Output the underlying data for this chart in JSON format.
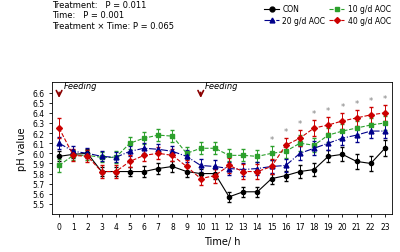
{
  "time": [
    0,
    1,
    2,
    3,
    4,
    5,
    6,
    7,
    8,
    9,
    10,
    11,
    12,
    13,
    14,
    15,
    16,
    17,
    18,
    19,
    20,
    21,
    22,
    23
  ],
  "CON": [
    5.97,
    5.99,
    6.0,
    5.82,
    5.82,
    5.82,
    5.82,
    5.85,
    5.87,
    5.82,
    5.8,
    5.8,
    5.57,
    5.62,
    5.62,
    5.75,
    5.78,
    5.82,
    5.84,
    5.97,
    5.99,
    5.92,
    5.9,
    6.05
  ],
  "CON_err": [
    0.05,
    0.04,
    0.04,
    0.04,
    0.04,
    0.04,
    0.05,
    0.05,
    0.05,
    0.05,
    0.05,
    0.05,
    0.05,
    0.05,
    0.05,
    0.05,
    0.05,
    0.06,
    0.06,
    0.06,
    0.07,
    0.07,
    0.07,
    0.08
  ],
  "G10": [
    5.88,
    5.98,
    5.98,
    5.96,
    5.96,
    6.1,
    6.15,
    6.18,
    6.17,
    6.0,
    6.05,
    6.05,
    5.98,
    5.98,
    5.97,
    6.0,
    6.02,
    6.1,
    6.08,
    6.18,
    6.22,
    6.25,
    6.28,
    6.3
  ],
  "G10_err": [
    0.06,
    0.05,
    0.05,
    0.05,
    0.06,
    0.06,
    0.06,
    0.06,
    0.06,
    0.06,
    0.06,
    0.06,
    0.06,
    0.06,
    0.06,
    0.07,
    0.07,
    0.08,
    0.07,
    0.07,
    0.07,
    0.07,
    0.07,
    0.07
  ],
  "G20": [
    6.1,
    6.02,
    6.0,
    5.97,
    5.96,
    6.02,
    6.05,
    6.04,
    6.02,
    5.97,
    5.88,
    5.87,
    5.85,
    5.84,
    5.85,
    5.87,
    5.88,
    6.0,
    6.05,
    6.1,
    6.15,
    6.18,
    6.22,
    6.22
  ],
  "G20_err": [
    0.06,
    0.05,
    0.05,
    0.05,
    0.05,
    0.05,
    0.05,
    0.05,
    0.05,
    0.06,
    0.06,
    0.06,
    0.06,
    0.06,
    0.06,
    0.06,
    0.06,
    0.07,
    0.07,
    0.07,
    0.07,
    0.07,
    0.07,
    0.07
  ],
  "G40": [
    6.25,
    5.98,
    5.97,
    5.82,
    5.82,
    5.92,
    5.98,
    6.0,
    5.98,
    5.87,
    5.75,
    5.78,
    5.88,
    5.82,
    5.82,
    5.87,
    6.08,
    6.15,
    6.25,
    6.28,
    6.32,
    6.35,
    6.38,
    6.4
  ],
  "G40_err": [
    0.1,
    0.06,
    0.06,
    0.06,
    0.06,
    0.06,
    0.06,
    0.06,
    0.06,
    0.06,
    0.06,
    0.07,
    0.07,
    0.07,
    0.07,
    0.07,
    0.07,
    0.08,
    0.08,
    0.08,
    0.08,
    0.08,
    0.08,
    0.08
  ],
  "asterisk_times": [
    15,
    16,
    17,
    18,
    19,
    20,
    21,
    22,
    23
  ],
  "feeding_times": [
    0,
    10
  ],
  "feeding_labels": [
    "Feeding",
    "Feeding"
  ],
  "ylabel": "pH value",
  "xlabel": "Time/ h",
  "ylim": [
    5.4,
    6.7
  ],
  "xlim": [
    -0.5,
    23.5
  ],
  "yticks": [
    5.5,
    5.6,
    5.7,
    5.8,
    5.9,
    6.0,
    6.1,
    6.2,
    6.3,
    6.4,
    6.5,
    6.6
  ],
  "xticks": [
    0,
    1,
    2,
    3,
    4,
    5,
    6,
    7,
    8,
    9,
    10,
    11,
    12,
    13,
    14,
    15,
    16,
    17,
    18,
    19,
    20,
    21,
    22,
    23
  ],
  "colors": {
    "CON": "#000000",
    "G10": "#2ca02c",
    "G20": "#00008B",
    "G40": "#cc0000"
  },
  "background": "#ffffff",
  "stats_lines": [
    "Treatment:   P = 0.011",
    "Time:   P = 0.001",
    "Treatment × Time: P = 0.065"
  ]
}
